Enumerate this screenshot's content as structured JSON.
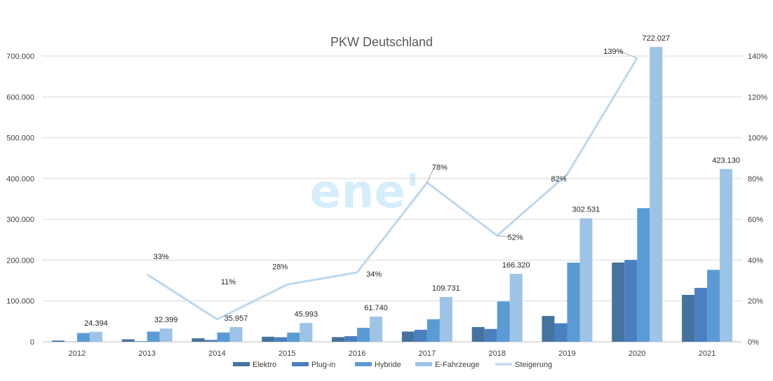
{
  "chart_data": {
    "type": "bar",
    "title": "PKW Deutschland",
    "categories": [
      "2012",
      "2013",
      "2014",
      "2015",
      "2016",
      "2017",
      "2018",
      "2019",
      "2020",
      "2021"
    ],
    "series": [
      {
        "name": "Elektro",
        "kind": "bar",
        "color": "#44739e",
        "values": [
          2956,
          6051,
          8522,
          12363,
          11410,
          25056,
          36062,
          63281,
          194163,
          114921
        ]
      },
      {
        "name": "Plug-in",
        "kind": "bar",
        "color": "#4a7fc0",
        "values": [
          300,
          1385,
          4527,
          11101,
          13744,
          29436,
          31442,
          45348,
          200469,
          132006
        ]
      },
      {
        "name": "Hybride",
        "kind": "bar",
        "color": "#5b9bd5",
        "values": [
          21438,
          24963,
          22908,
          22529,
          34252,
          55239,
          98816,
          193902,
          327395,
          176203
        ]
      },
      {
        "name": "E-Fahrzeuge",
        "kind": "bar",
        "color": "#9dc3e6",
        "values": [
          24394,
          32399,
          35957,
          45993,
          61740,
          109731,
          166320,
          302531,
          722027,
          423130
        ],
        "labels": [
          "24.394",
          "32.399",
          "35.957",
          "45.993",
          "61.740",
          "109.731",
          "166.320",
          "302.531",
          "722.027",
          "423.130"
        ]
      },
      {
        "name": "Steigerung",
        "kind": "line",
        "axis": "right",
        "color": "#bdd7ee",
        "values": [
          null,
          33,
          11,
          28,
          34,
          78,
          52,
          82,
          139,
          null
        ],
        "labels": [
          null,
          "33%",
          "11%",
          "28%",
          "34%",
          "78%",
          "52%",
          "82%",
          "139%",
          null
        ]
      }
    ],
    "y_left": {
      "min": 0,
      "max": 700000,
      "ticks": [
        "0",
        "100.000",
        "200.000",
        "300.000",
        "400.000",
        "500.000",
        "600.000",
        "700.000"
      ]
    },
    "y_right": {
      "min": 0,
      "max": 140,
      "ticks": [
        "0%",
        "20%",
        "40%",
        "60%",
        "80%",
        "100%",
        "120%",
        "140%"
      ]
    },
    "grid": true,
    "legend_position": "bottom",
    "watermark": "ene'"
  }
}
